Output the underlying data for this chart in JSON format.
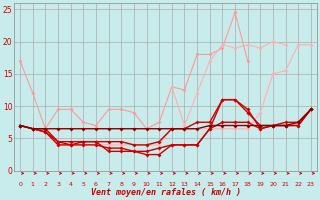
{
  "x": [
    0,
    1,
    2,
    3,
    4,
    5,
    6,
    7,
    8,
    9,
    10,
    11,
    12,
    13,
    14,
    15,
    16,
    17,
    18,
    19,
    20,
    21,
    22,
    23
  ],
  "series": [
    {
      "color": "#FF9999",
      "lw": 0.8,
      "data": [
        17,
        12,
        6.5,
        9.5,
        9.5,
        7.5,
        7,
        9.5,
        9.5,
        9,
        6.5,
        7.5,
        13,
        12.5,
        18,
        18,
        19,
        24.5,
        17,
        null,
        null,
        null,
        null,
        null
      ]
    },
    {
      "color": "#FFB0B0",
      "lw": 0.8,
      "data": [
        null,
        null,
        null,
        null,
        null,
        null,
        null,
        null,
        null,
        null,
        null,
        null,
        13,
        7,
        12,
        17,
        19.5,
        19,
        19.5,
        19,
        20,
        19.5,
        null,
        null
      ]
    },
    {
      "color": "#FFB0B0",
      "lw": 0.8,
      "data": [
        7,
        6.5,
        6.5,
        4,
        4,
        4,
        4,
        4,
        4,
        4,
        4,
        4,
        6.5,
        6.5,
        6.5,
        6.5,
        6.5,
        6.5,
        6.5,
        9,
        15,
        15.5,
        19.5,
        19.5
      ]
    },
    {
      "color": "#CC0000",
      "lw": 1.0,
      "data": [
        7,
        6.5,
        6.5,
        4.5,
        4,
        4.5,
        4.5,
        3,
        3,
        3,
        2.5,
        2.5,
        4,
        4,
        4,
        6.5,
        11,
        11,
        9.5,
        6.5,
        7,
        7,
        7,
        9.5
      ]
    },
    {
      "color": "#CC0000",
      "lw": 1.0,
      "data": [
        7,
        6.5,
        6,
        4,
        4,
        4,
        4,
        3.5,
        3.5,
        3,
        3,
        3.5,
        4,
        4,
        4,
        6.5,
        7.5,
        7.5,
        7.5,
        6.5,
        7,
        7,
        7,
        9.5
      ]
    },
    {
      "color": "#CC0000",
      "lw": 1.0,
      "data": [
        7,
        6.5,
        6,
        4.5,
        4.5,
        4.5,
        4.5,
        4.5,
        4.5,
        4,
        4,
        4.5,
        6.5,
        6.5,
        7.5,
        7.5,
        11,
        11,
        9,
        7,
        7,
        7.5,
        7.5,
        9.5
      ]
    },
    {
      "color": "#880000",
      "lw": 1.0,
      "data": [
        7,
        6.5,
        6.5,
        6.5,
        6.5,
        6.5,
        6.5,
        6.5,
        6.5,
        6.5,
        6.5,
        6.5,
        6.5,
        6.5,
        6.5,
        7,
        7,
        7,
        7,
        7,
        7,
        7,
        7.5,
        9.5
      ]
    }
  ],
  "xlabel": "Vent moyen/en rafales ( km/h )",
  "xlim": [
    -0.5,
    23.5
  ],
  "ylim": [
    0,
    26
  ],
  "yticks": [
    0,
    5,
    10,
    15,
    20,
    25
  ],
  "xticks": [
    0,
    1,
    2,
    3,
    4,
    5,
    6,
    7,
    8,
    9,
    10,
    11,
    12,
    13,
    14,
    15,
    16,
    17,
    18,
    19,
    20,
    21,
    22,
    23
  ],
  "bg_color": "#C8ECEC",
  "grid_color": "#AAAAAA",
  "arrow_color": "#CC0000",
  "marker": "D",
  "marker_size": 2.0
}
